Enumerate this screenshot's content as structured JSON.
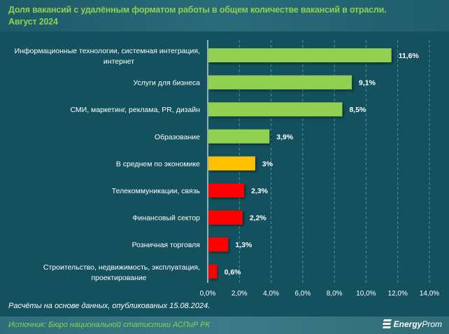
{
  "header": {
    "title_line1": "Доля вакансий с удалённым форматом работы в общем количестве вакансий в отрасли.",
    "title_line2": "Август 2024"
  },
  "colors": {
    "above_average": "#92d050",
    "average": "#ffc000",
    "below_average": "#ff0000",
    "title": "#8fd14f",
    "background": "#13515f"
  },
  "chart_data": {
    "type": "bar",
    "orientation": "horizontal",
    "title": "Доля вакансий с удалённым форматом работы в общем количестве вакансий в отрасли. Август 2024",
    "xlabel": "",
    "ylabel": "",
    "xlim": [
      0,
      14
    ],
    "grid": "vertical dashed",
    "categories": [
      [
        "Информационные технологии, системная интеграция,",
        "интернет"
      ],
      [
        "Услуги для бизнеса"
      ],
      [
        "СМИ, маркетинг, реклама, PR, дизайн"
      ],
      [
        "Образование"
      ],
      [
        "В среднем по экономике"
      ],
      [
        "Телекоммуникации, связь"
      ],
      [
        "Финансовый сектор"
      ],
      [
        "Розничная торговля"
      ],
      [
        "Строительство, недвижимость, эксплуатация,",
        "проектирование"
      ]
    ],
    "values": [
      11.6,
      9.1,
      8.5,
      3.9,
      3.0,
      2.3,
      2.2,
      1.3,
      0.6
    ],
    "value_labels": [
      "11,6%",
      "9,1%",
      "8,5%",
      "3,9%",
      "3%",
      "2,3%",
      "2,2%",
      "1,3%",
      "0,6%"
    ],
    "bar_groups": [
      "above_average",
      "above_average",
      "above_average",
      "above_average",
      "average",
      "below_average",
      "below_average",
      "below_average",
      "below_average"
    ],
    "x_ticks": [
      0,
      2,
      4,
      6,
      8,
      10,
      12,
      14
    ],
    "x_tick_labels": [
      "0,0%",
      "2,0%",
      "4,0%",
      "6,0%",
      "8,0%",
      "10,0%",
      "12,0%",
      "14,0%"
    ]
  },
  "note": "Расчёты на основе данных, опубликованых 15.08.2024.",
  "footer": {
    "source": "Источник: Бюро национальной статистики АСПиР РК",
    "logo_bold": "Energy",
    "logo_rest": "Prom",
    "logo_icon": "energyprom-logo-icon"
  }
}
